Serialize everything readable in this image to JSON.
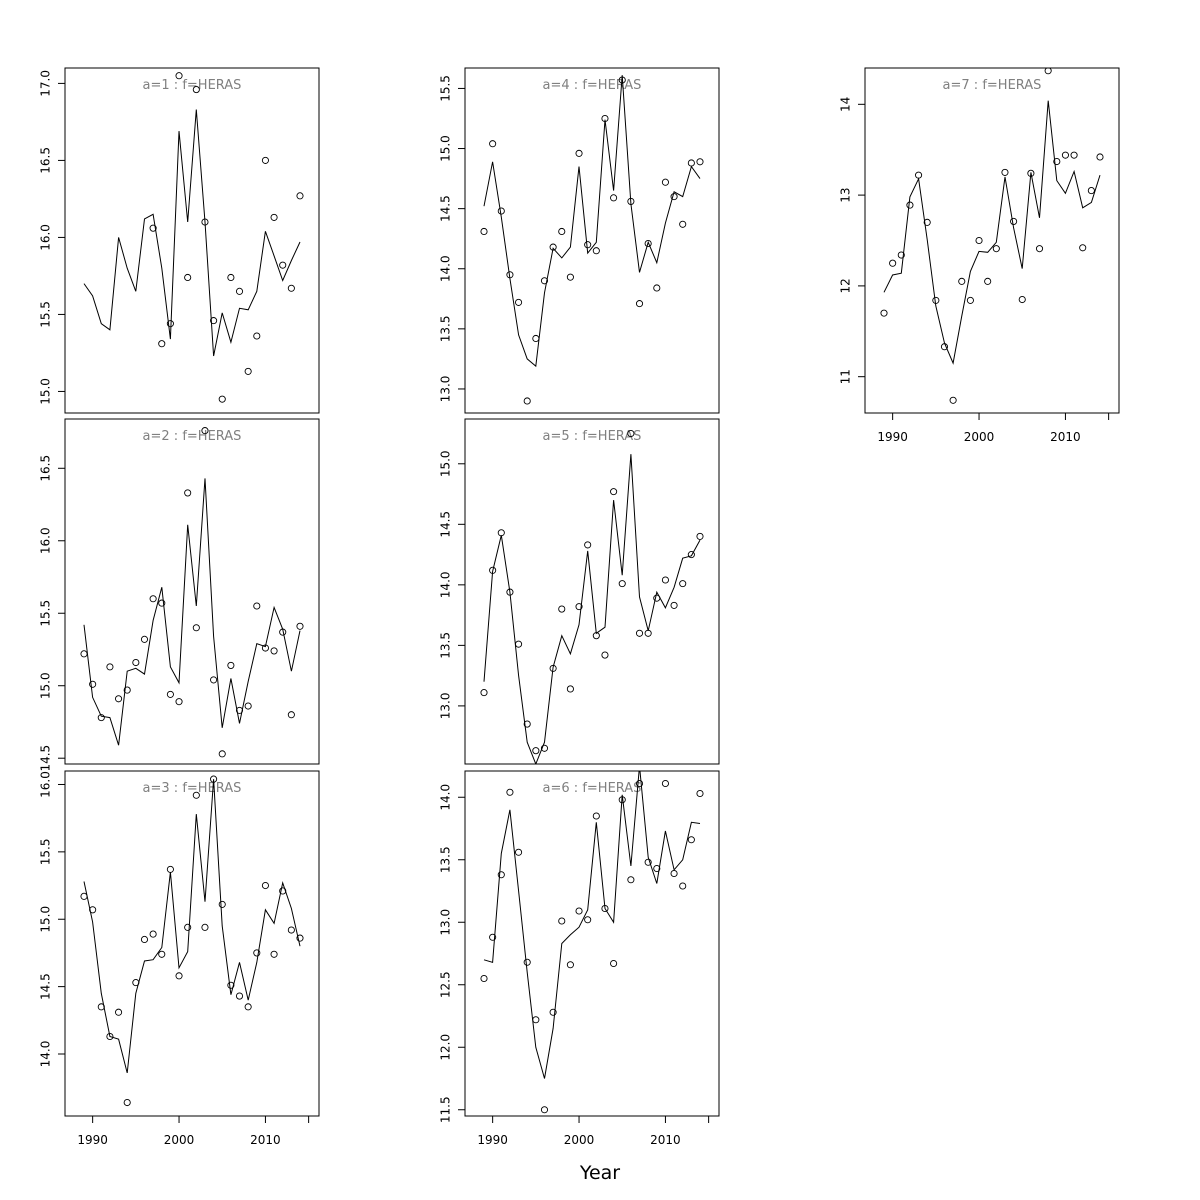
{
  "chart_data": {
    "type": "scatter",
    "xlabel": "Year",
    "x": [
      1989,
      1990,
      1991,
      1992,
      1993,
      1994,
      1995,
      1996,
      1997,
      1998,
      1999,
      2000,
      2001,
      2002,
      2003,
      2004,
      2005,
      2006,
      2007,
      2008,
      2009,
      2010,
      2011,
      2012,
      2013,
      2014
    ],
    "xlim": [
      1986.8,
      2016.2
    ],
    "xticks": [
      1990,
      2000,
      2010
    ],
    "panels": [
      {
        "id": "a1",
        "title": "a=1  :  f=HERAS",
        "ylim": [
          14.86,
          17.1
        ],
        "yticks": [
          15.0,
          15.5,
          16.0,
          16.5,
          17.0
        ],
        "ytick_format": 1,
        "fitted": [
          15.7,
          15.62,
          15.44,
          15.4,
          16.0,
          15.8,
          15.65,
          16.12,
          16.15,
          15.8,
          15.34,
          16.69,
          16.1,
          16.83,
          16.1,
          15.23,
          15.51,
          15.32,
          15.54,
          15.53,
          15.65,
          16.04,
          15.88,
          15.72,
          15.85,
          15.97
        ],
        "observed": [
          null,
          null,
          null,
          null,
          null,
          null,
          null,
          null,
          16.06,
          15.31,
          15.44,
          17.05,
          15.74,
          16.96,
          16.1,
          15.46,
          14.95,
          15.74,
          15.65,
          15.13,
          15.36,
          16.5,
          16.13,
          15.82,
          15.67,
          16.27
        ]
      },
      {
        "id": "a2",
        "title": "a=2  :  f=HERAS",
        "ylim": [
          14.46,
          16.84
        ],
        "yticks": [
          14.5,
          15.0,
          15.5,
          16.0,
          16.5
        ],
        "ytick_format": 1,
        "fitted": [
          15.42,
          14.92,
          14.79,
          14.78,
          14.59,
          15.1,
          15.12,
          15.08,
          15.45,
          15.68,
          15.13,
          15.02,
          16.11,
          15.55,
          16.43,
          15.34,
          14.71,
          15.05,
          14.74,
          15.03,
          15.29,
          15.27,
          15.54,
          15.39,
          15.1,
          15.38
        ],
        "observed": [
          15.22,
          15.01,
          14.78,
          15.13,
          14.91,
          14.97,
          15.16,
          15.32,
          15.6,
          15.57,
          14.94,
          14.89,
          16.33,
          15.4,
          16.76,
          15.04,
          14.53,
          15.14,
          14.83,
          14.86,
          15.55,
          15.26,
          15.24,
          15.37,
          14.8,
          15.41
        ]
      },
      {
        "id": "a3",
        "title": "a=3  :  f=HERAS",
        "ylim": [
          13.54,
          16.1
        ],
        "yticks": [
          14.0,
          14.5,
          15.0,
          15.5,
          16.0
        ],
        "ytick_format": 1,
        "fitted": [
          15.28,
          14.98,
          14.45,
          14.13,
          14.11,
          13.86,
          14.45,
          14.69,
          14.7,
          14.79,
          15.35,
          14.64,
          14.76,
          15.78,
          15.13,
          16.04,
          14.95,
          14.44,
          14.68,
          14.4,
          14.68,
          15.07,
          14.97,
          15.27,
          15.08,
          14.8
        ],
        "observed": [
          15.17,
          15.07,
          14.35,
          14.13,
          14.31,
          13.64,
          14.53,
          14.85,
          14.89,
          14.74,
          15.37,
          14.58,
          14.94,
          15.92,
          14.94,
          16.04,
          15.11,
          14.51,
          14.43,
          14.35,
          14.75,
          15.25,
          14.74,
          15.21,
          14.92,
          14.86
        ]
      },
      {
        "id": "a4",
        "title": "a=4  :  f=HERAS",
        "ylim": [
          12.8,
          15.67
        ],
        "yticks": [
          13.0,
          13.5,
          14.0,
          14.5,
          15.0,
          15.5
        ],
        "ytick_format": 1,
        "fitted": [
          14.52,
          14.89,
          14.43,
          13.92,
          13.45,
          13.25,
          13.19,
          13.8,
          14.17,
          14.09,
          14.18,
          14.85,
          14.13,
          14.22,
          15.24,
          14.65,
          15.61,
          14.54,
          13.97,
          14.22,
          14.05,
          14.38,
          14.64,
          14.6,
          14.85,
          14.75
        ],
        "observed": [
          14.31,
          15.04,
          14.48,
          13.95,
          13.72,
          12.9,
          13.42,
          13.9,
          14.18,
          14.31,
          13.93,
          14.96,
          14.2,
          14.15,
          15.25,
          14.59,
          15.57,
          14.56,
          13.71,
          14.21,
          13.84,
          14.72,
          14.6,
          14.37,
          14.88,
          14.89
        ]
      },
      {
        "id": "a5",
        "title": "a=5  :  f=HERAS",
        "ylim": [
          12.52,
          15.37
        ],
        "yticks": [
          13.0,
          13.5,
          14.0,
          14.5,
          15.0
        ],
        "ytick_format": 1,
        "fitted": [
          13.2,
          14.11,
          14.41,
          13.94,
          13.25,
          12.7,
          12.52,
          12.7,
          13.32,
          13.58,
          13.43,
          13.67,
          14.28,
          13.6,
          13.65,
          14.7,
          14.08,
          15.08,
          13.9,
          13.62,
          13.94,
          13.81,
          13.98,
          14.22,
          14.24,
          14.37
        ],
        "observed": [
          13.11,
          14.12,
          14.43,
          13.94,
          13.51,
          12.85,
          12.63,
          12.65,
          13.31,
          13.8,
          13.14,
          13.82,
          14.33,
          13.58,
          13.42,
          14.77,
          14.01,
          15.25,
          13.6,
          13.6,
          13.89,
          14.04,
          13.83,
          14.01,
          14.25,
          14.4
        ]
      },
      {
        "id": "a6",
        "title": "a=6  :  f=HERAS",
        "ylim": [
          11.45,
          14.21
        ],
        "yticks": [
          11.5,
          12.0,
          12.5,
          13.0,
          13.5,
          14.0
        ],
        "ytick_format": 1,
        "fitted": [
          12.7,
          12.68,
          13.55,
          13.9,
          13.25,
          12.6,
          12.0,
          11.75,
          12.15,
          12.83,
          12.9,
          12.96,
          13.1,
          13.8,
          13.11,
          13.0,
          14.02,
          13.45,
          14.25,
          13.52,
          13.31,
          13.73,
          13.42,
          13.5,
          13.8,
          13.79
        ],
        "observed": [
          12.55,
          12.88,
          13.38,
          14.04,
          13.56,
          12.68,
          12.22,
          11.5,
          12.28,
          13.01,
          12.66,
          13.09,
          13.02,
          13.85,
          13.11,
          12.67,
          13.98,
          13.34,
          14.11,
          13.48,
          13.43,
          14.11,
          13.39,
          13.29,
          13.66,
          14.03
        ]
      },
      {
        "id": "a7",
        "title": "a=7  :  f=HERAS",
        "ylim": [
          10.6,
          14.4
        ],
        "yticks": [
          11,
          12,
          13,
          14
        ],
        "ytick_format": 0,
        "fitted": [
          11.93,
          12.12,
          12.14,
          12.98,
          13.18,
          12.51,
          11.78,
          11.37,
          11.15,
          11.67,
          12.16,
          12.38,
          12.37,
          12.48,
          13.2,
          12.64,
          12.19,
          13.25,
          12.75,
          14.04,
          13.16,
          13.02,
          13.26,
          12.86,
          12.92,
          13.22
        ],
        "observed": [
          11.7,
          12.25,
          12.34,
          12.89,
          13.22,
          12.7,
          11.84,
          11.33,
          10.74,
          12.05,
          11.84,
          12.5,
          12.05,
          12.41,
          13.25,
          12.71,
          11.85,
          13.24,
          12.41,
          14.37,
          13.37,
          13.44,
          13.44,
          12.42,
          13.05,
          13.42
        ]
      }
    ]
  }
}
